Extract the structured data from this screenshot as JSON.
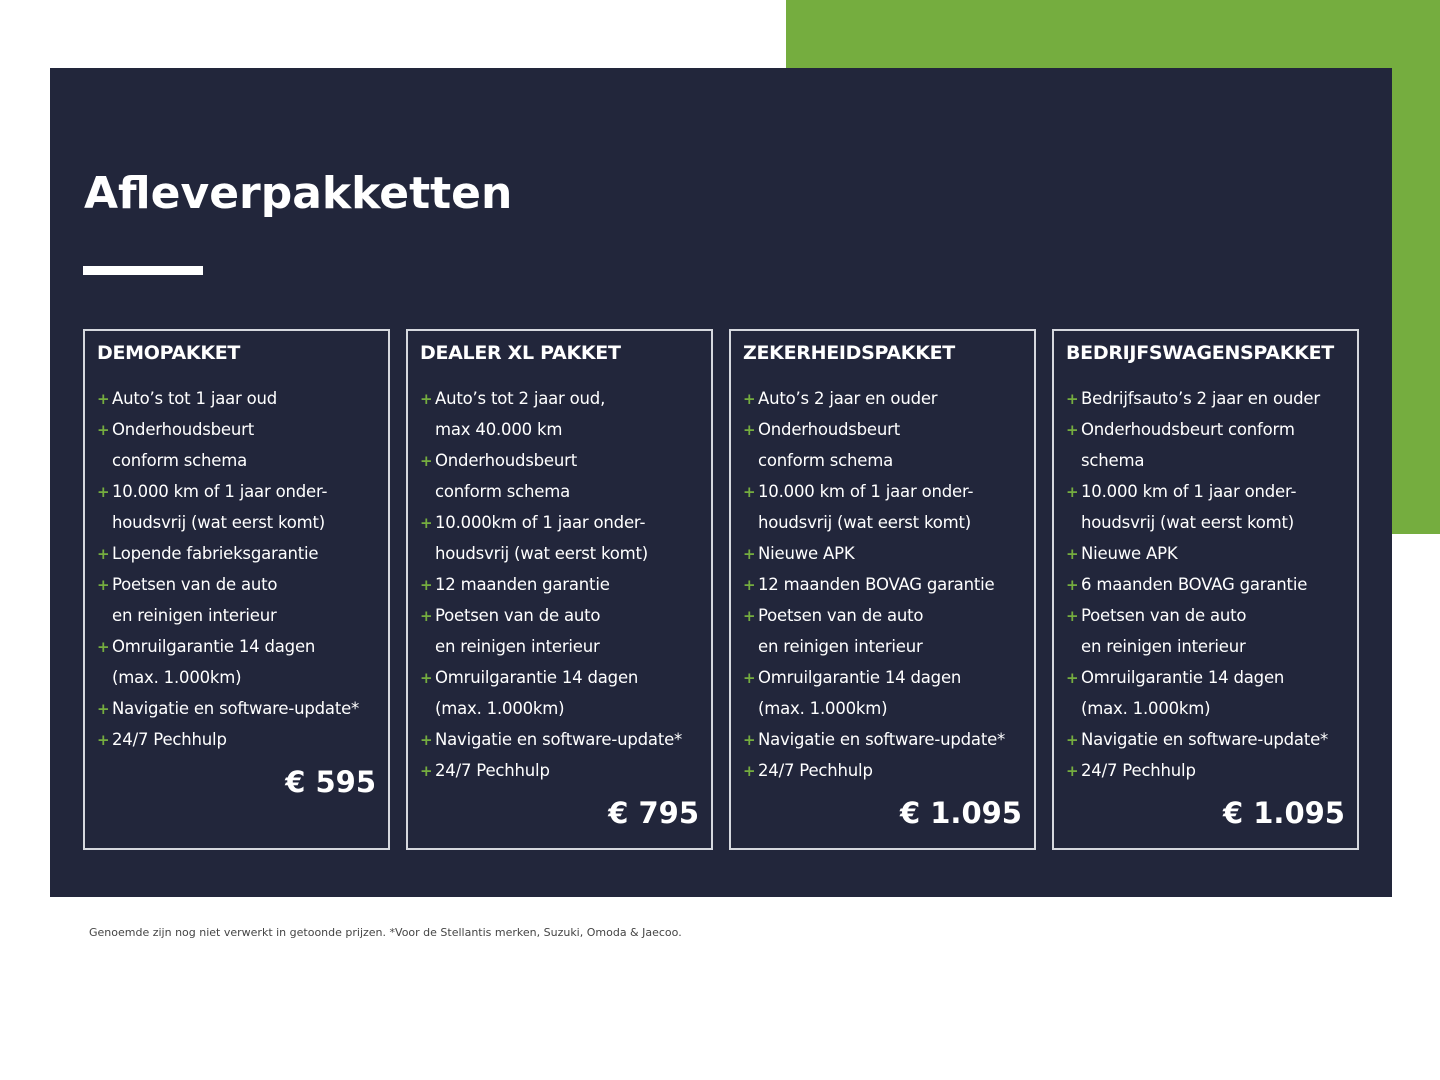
{
  "title": "Afleverpakketten",
  "colors": {
    "navy": "#22263b",
    "green": "#75ad3f"
  },
  "packages": [
    {
      "name": "DEMOPAKKET",
      "price": "€ 595",
      "items": [
        [
          "Auto’s tot 1 jaar oud"
        ],
        [
          "Onderhoudsbeurt",
          "conform schema"
        ],
        [
          "10.000 km of 1 jaar onder-",
          "houdsvrij (wat eerst komt)"
        ],
        [
          "Lopende fabrieksgarantie"
        ],
        [
          "Poetsen van de auto",
          "en reinigen interieur"
        ],
        [
          "Omruilgarantie 14 dagen",
          "(max. 1.000km)"
        ],
        [
          "Navigatie en software-update*"
        ],
        [
          "24/7 Pechhulp"
        ]
      ]
    },
    {
      "name": "DEALER XL PAKKET",
      "price": "€ 795",
      "items": [
        [
          "Auto’s tot 2 jaar oud,",
          "max 40.000 km"
        ],
        [
          "Onderhoudsbeurt",
          "conform schema"
        ],
        [
          "10.000km of 1 jaar onder-",
          "houdsvrij (wat eerst komt)"
        ],
        [
          "12 maanden garantie"
        ],
        [
          "Poetsen van de auto",
          "en reinigen interieur"
        ],
        [
          "Omruilgarantie 14 dagen",
          "(max. 1.000km)"
        ],
        [
          "Navigatie en software-update*"
        ],
        [
          "24/7 Pechhulp"
        ]
      ]
    },
    {
      "name": "ZEKERHEIDSPAKKET",
      "price": "€ 1.095",
      "items": [
        [
          "Auto’s 2 jaar en ouder"
        ],
        [
          "Onderhoudsbeurt",
          "conform schema"
        ],
        [
          "10.000 km of 1 jaar onder-",
          "houdsvrij (wat eerst komt)"
        ],
        [
          "Nieuwe APK"
        ],
        [
          "12 maanden BOVAG garantie"
        ],
        [
          "Poetsen van de auto",
          "en reinigen interieur"
        ],
        [
          "Omruilgarantie 14 dagen",
          "(max. 1.000km)"
        ],
        [
          "Navigatie en software-update*"
        ],
        [
          "24/7 Pechhulp"
        ]
      ]
    },
    {
      "name": "BEDRIJFSWAGENSPAKKET",
      "price": "€ 1.095",
      "items": [
        [
          "Bedrijfsauto’s 2 jaar en ouder"
        ],
        [
          "Onderhoudsbeurt conform",
          "schema"
        ],
        [
          "10.000 km of 1 jaar onder-",
          "houdsvrij (wat eerst komt)"
        ],
        [
          "Nieuwe APK"
        ],
        [
          "6 maanden BOVAG garantie"
        ],
        [
          "Poetsen van de auto",
          "en reinigen interieur"
        ],
        [
          "Omruilgarantie 14 dagen",
          "(max. 1.000km)"
        ],
        [
          "Navigatie en software-update*"
        ],
        [
          "24/7 Pechhulp"
        ]
      ]
    }
  ],
  "footnote": "Genoemde zijn nog niet verwerkt in getoonde prijzen. *Voor de Stellantis merken, Suzuki, Omoda & Jaecoo."
}
